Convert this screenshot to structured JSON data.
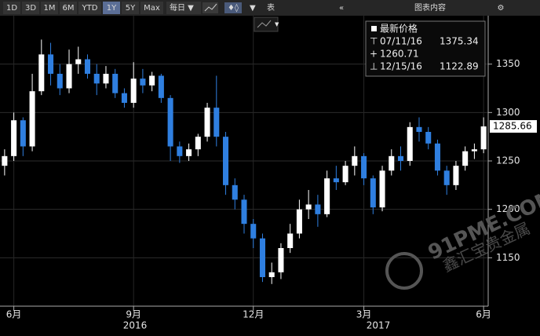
{
  "toolbar": {
    "ranges": [
      "1D",
      "3D",
      "1M",
      "6M",
      "YTD",
      "1Y",
      "5Y",
      "Max"
    ],
    "active": "1Y",
    "frequency": "每日 ▼",
    "table": "表",
    "content": "图表内容"
  },
  "watermark": [
    "91PME.COM",
    "鑫汇宝贵金属"
  ],
  "legend": {
    "title": "最新价格",
    "high": {
      "date": "07/11/16",
      "value": 1375.34
    },
    "average": 1260.71,
    "low": {
      "date": "12/15/16",
      "value": 1122.89
    }
  },
  "chart_data": {
    "type": "candlestick",
    "categories": [
      null,
      "6月",
      null,
      null,
      null,
      null,
      null,
      null,
      null,
      null,
      null,
      null,
      null,
      null,
      "9月",
      null,
      null,
      null,
      null,
      null,
      null,
      null,
      null,
      null,
      null,
      null,
      null,
      "12月",
      null,
      null,
      null,
      null,
      null,
      null,
      null,
      null,
      null,
      null,
      null,
      "3月",
      null,
      null,
      null,
      null,
      null,
      null,
      null,
      null,
      null,
      null,
      null,
      null,
      "6月"
    ],
    "x_groups": [
      "2016",
      "2017"
    ],
    "open": [
      1245,
      1255,
      1292,
      1265,
      1322,
      1360,
      1340,
      1325,
      1350,
      1355,
      1340,
      1330,
      1340,
      1320,
      1310,
      1335,
      1328,
      1338,
      1315,
      1265,
      1255,
      1262,
      1275,
      1305,
      1275,
      1225,
      1210,
      1185,
      1170,
      1130,
      1135,
      1160,
      1175,
      1200,
      1205,
      1195,
      1232,
      1228,
      1245,
      1255,
      1232,
      1202,
      1240,
      1255,
      1250,
      1285,
      1280,
      1268,
      1240,
      1225,
      1245,
      1260,
      1262
    ],
    "high": [
      1262,
      1300,
      1295,
      1340,
      1375.34,
      1372,
      1350,
      1365,
      1368,
      1360,
      1350,
      1348,
      1345,
      1325,
      1352,
      1345,
      1342,
      1340,
      1318,
      1270,
      1268,
      1278,
      1310,
      1338,
      1280,
      1232,
      1215,
      1190,
      1175,
      1145,
      1165,
      1185,
      1210,
      1220,
      1215,
      1240,
      1245,
      1250,
      1265,
      1258,
      1235,
      1245,
      1262,
      1265,
      1290,
      1295,
      1285,
      1272,
      1245,
      1250,
      1265,
      1268,
      1295
    ],
    "low": [
      1235,
      1250,
      1255,
      1260,
      1318,
      1328,
      1318,
      1320,
      1340,
      1335,
      1318,
      1325,
      1315,
      1305,
      1305,
      1320,
      1322,
      1310,
      1250,
      1248,
      1250,
      1255,
      1270,
      1265,
      1215,
      1200,
      1175,
      1160,
      1125,
      1122.89,
      1128,
      1155,
      1170,
      1190,
      1182,
      1192,
      1220,
      1225,
      1235,
      1225,
      1195,
      1198,
      1235,
      1240,
      1245,
      1270,
      1262,
      1235,
      1215,
      1220,
      1240,
      1252,
      1258
    ],
    "close": [
      1255,
      1292,
      1265,
      1322,
      1360,
      1340,
      1325,
      1350,
      1355,
      1340,
      1330,
      1340,
      1320,
      1310,
      1335,
      1328,
      1338,
      1315,
      1265,
      1255,
      1262,
      1275,
      1305,
      1275,
      1225,
      1210,
      1185,
      1170,
      1130,
      1135,
      1160,
      1175,
      1200,
      1205,
      1195,
      1232,
      1228,
      1245,
      1255,
      1232,
      1202,
      1240,
      1255,
      1250,
      1285,
      1280,
      1268,
      1240,
      1225,
      1245,
      1260,
      1262,
      1285.66
    ],
    "up_color": "#ffffff",
    "down_color": "#2f7fe0",
    "ylim": [
      1100,
      1400
    ],
    "yticks": [
      1150,
      1200,
      1250,
      1300,
      1350
    ],
    "grid": true
  }
}
